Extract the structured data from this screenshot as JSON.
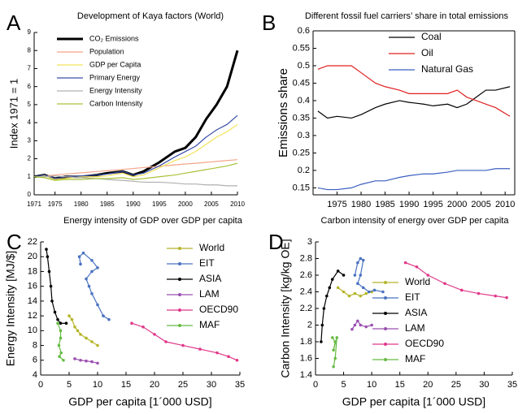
{
  "chart_data": [
    {
      "type": "line",
      "panel": "A",
      "title": "Development of Kaya factors (World)",
      "ylabel": "Index 1971 = 1",
      "x": [
        1971,
        1973,
        1975,
        1977,
        1980,
        1983,
        1985,
        1988,
        1990,
        1992,
        1995,
        1998,
        2000,
        2002,
        2004,
        2006,
        2008,
        2010
      ],
      "xlim": [
        1971,
        2010
      ],
      "xticks": [
        1971,
        1975,
        1980,
        1985,
        1990,
        1995,
        2000,
        2005,
        2010
      ],
      "ylim": [
        0,
        9
      ],
      "yticks": [
        0,
        1,
        2,
        3,
        4,
        5,
        6,
        7,
        8,
        9
      ],
      "legend": "upper left",
      "series": [
        {
          "name": "CO₂ Emissions",
          "color": "#000000",
          "linewidth": 3,
          "values": [
            1,
            1.1,
            0.9,
            1.0,
            1.0,
            1.1,
            1.2,
            1.3,
            1.1,
            1.3,
            1.8,
            2.4,
            2.6,
            3.2,
            4.2,
            5.0,
            6.0,
            8.0
          ]
        },
        {
          "name": "Population",
          "color": "#f4a58a",
          "values": [
            1,
            1.05,
            1.1,
            1.15,
            1.22,
            1.29,
            1.34,
            1.41,
            1.46,
            1.51,
            1.58,
            1.66,
            1.71,
            1.75,
            1.8,
            1.85,
            1.9,
            1.95
          ]
        },
        {
          "name": "GDP per Capita",
          "color": "#f2e25a",
          "values": [
            1,
            1.05,
            0.85,
            0.9,
            1.0,
            1.0,
            1.05,
            1.2,
            1.0,
            1.1,
            1.5,
            1.9,
            2.1,
            2.4,
            2.8,
            3.2,
            3.5,
            3.9
          ]
        },
        {
          "name": "Primary Energy",
          "color": "#3a4fa8",
          "values": [
            1,
            1.1,
            0.9,
            1.0,
            1.05,
            1.1,
            1.15,
            1.3,
            1.1,
            1.2,
            1.6,
            2.1,
            2.4,
            2.7,
            3.2,
            3.6,
            3.9,
            4.4
          ]
        },
        {
          "name": "Energy Intensity",
          "color": "#b0b0b0",
          "values": [
            1,
            1.0,
            1.05,
            1.0,
            0.95,
            0.9,
            0.85,
            0.8,
            0.75,
            0.7,
            0.7,
            0.65,
            0.6,
            0.6,
            0.55,
            0.55,
            0.5,
            0.5
          ]
        },
        {
          "name": "Carbon Intensity",
          "color": "#a8c23a",
          "values": [
            1,
            0.95,
            0.8,
            0.85,
            0.85,
            0.9,
            0.9,
            0.95,
            0.85,
            0.9,
            1.0,
            1.1,
            1.2,
            1.3,
            1.4,
            1.5,
            1.6,
            1.75
          ]
        }
      ]
    },
    {
      "type": "line",
      "panel": "B",
      "title": "Different fossil fuel carriers’ share in total emissions",
      "ylabel": "Emissions share",
      "x": [
        1971,
        1973,
        1975,
        1978,
        1980,
        1983,
        1985,
        1988,
        1990,
        1993,
        1995,
        1998,
        2000,
        2002,
        2004,
        2006,
        2008,
        2011
      ],
      "xlim": [
        1970,
        2012
      ],
      "xticks": [
        1975,
        1980,
        1985,
        1990,
        1995,
        2000,
        2005,
        2010
      ],
      "ylim": [
        0.13,
        0.6
      ],
      "yticks": [
        0.15,
        0.2,
        0.25,
        0.3,
        0.35,
        0.4,
        0.45,
        0.5,
        0.55,
        0.6
      ],
      "legend": "upper right",
      "series": [
        {
          "name": "Coal",
          "color": "#000000",
          "values": [
            0.37,
            0.35,
            0.355,
            0.35,
            0.36,
            0.38,
            0.39,
            0.4,
            0.395,
            0.39,
            0.385,
            0.39,
            0.38,
            0.39,
            0.41,
            0.43,
            0.43,
            0.44
          ]
        },
        {
          "name": "Oil",
          "color": "#e02020",
          "values": [
            0.49,
            0.5,
            0.5,
            0.5,
            0.48,
            0.45,
            0.44,
            0.43,
            0.42,
            0.42,
            0.42,
            0.42,
            0.43,
            0.41,
            0.4,
            0.39,
            0.38,
            0.355
          ]
        },
        {
          "name": "Natural Gas",
          "color": "#3a5fc0",
          "values": [
            0.15,
            0.145,
            0.145,
            0.15,
            0.16,
            0.17,
            0.17,
            0.18,
            0.185,
            0.19,
            0.19,
            0.195,
            0.2,
            0.2,
            0.2,
            0.2,
            0.205,
            0.205
          ]
        }
      ]
    },
    {
      "type": "scatter",
      "panel": "C",
      "title": "Energy intensity of GDP over GDP per capita",
      "ylabel": "Energy Intensity [MJ/$]",
      "xlabel": "GDP per capita [1´000 USD]",
      "xlim": [
        0,
        35
      ],
      "xticks": [
        0,
        5,
        10,
        15,
        20,
        25,
        30,
        35
      ],
      "ylim": [
        4,
        22
      ],
      "yticks": [
        4,
        6,
        8,
        10,
        12,
        14,
        16,
        18,
        20,
        22
      ],
      "legend": "upper right",
      "markers": true,
      "series": [
        {
          "name": "World",
          "color": "#b5b52a",
          "x": [
            5,
            5.5,
            6,
            6.5,
            7,
            8,
            9,
            10
          ],
          "values": [
            12,
            11.5,
            10.5,
            10,
            9.5,
            9,
            8.5,
            8
          ]
        },
        {
          "name": "EIT",
          "color": "#4a72c0",
          "x": [
            7,
            6.8,
            7.5,
            9,
            10,
            9,
            8,
            8.5,
            9,
            10,
            11,
            12
          ],
          "values": [
            19,
            20,
            20.5,
            19.5,
            18.5,
            18,
            17,
            16,
            15,
            13.5,
            12,
            11.5
          ]
        },
        {
          "name": "ASIA",
          "color": "#000000",
          "x": [
            1,
            1.2,
            1.5,
            1.8,
            2,
            2.5,
            3,
            3.5,
            4.5
          ],
          "values": [
            21,
            20,
            18,
            16,
            14,
            12.5,
            11.5,
            11,
            11
          ]
        },
        {
          "name": "LAM",
          "color": "#9a4fb0",
          "x": [
            6,
            7,
            8,
            9,
            10
          ],
          "values": [
            6.2,
            6,
            5.9,
            5.8,
            5.6
          ]
        },
        {
          "name": "OECD90",
          "color": "#e0388a",
          "x": [
            16,
            18,
            20,
            22,
            25,
            28,
            31,
            33,
            34.5
          ],
          "values": [
            11,
            10.5,
            9.5,
            8.5,
            8,
            7.5,
            7,
            6.5,
            6
          ]
        },
        {
          "name": "MAF",
          "color": "#66bb44",
          "x": [
            3,
            3.5,
            3.5,
            3.2,
            3.6,
            3.3,
            4
          ],
          "values": [
            11,
            10,
            9,
            8,
            7,
            6.5,
            6
          ]
        }
      ]
    },
    {
      "type": "scatter",
      "panel": "D",
      "title": "Carbon intensity of energy over GDP per capita",
      "ylabel": "Carbon Intensity [kg/kg OE]",
      "xlabel": "GDP per capita [1´000 USD]",
      "xlim": [
        0,
        35
      ],
      "xticks": [
        0,
        5,
        10,
        15,
        20,
        25,
        30,
        35
      ],
      "ylim": [
        1.4,
        3
      ],
      "yticks": [
        1.4,
        1.6,
        1.8,
        2,
        2.2,
        2.4,
        2.6,
        2.8,
        3
      ],
      "legend": "lower right",
      "markers": true,
      "series": [
        {
          "name": "World",
          "color": "#b5b52a",
          "x": [
            4,
            5,
            6,
            7,
            8,
            9,
            10
          ],
          "values": [
            2.45,
            2.4,
            2.35,
            2.38,
            2.35,
            2.38,
            2.4
          ]
        },
        {
          "name": "EIT",
          "color": "#4a72c0",
          "x": [
            7,
            7.5,
            8,
            8.5,
            8,
            7.5,
            8.5,
            9.5,
            10.5,
            12
          ],
          "values": [
            2.6,
            2.75,
            2.8,
            2.78,
            2.6,
            2.5,
            2.45,
            2.4,
            2.42,
            2.4
          ]
        },
        {
          "name": "ASIA",
          "color": "#000000",
          "x": [
            1,
            1.2,
            1.5,
            2,
            2.5,
            3,
            4,
            5
          ],
          "values": [
            1.8,
            2,
            2.2,
            2.35,
            2.45,
            2.55,
            2.65,
            2.6
          ]
        },
        {
          "name": "LAM",
          "color": "#9a4fb0",
          "x": [
            6.5,
            7,
            7.5,
            8,
            9,
            10
          ],
          "values": [
            1.95,
            2.0,
            2.05,
            2.0,
            1.98,
            2.0
          ]
        },
        {
          "name": "OECD90",
          "color": "#e0388a",
          "x": [
            16,
            18,
            20,
            23,
            26,
            29,
            32,
            34
          ],
          "values": [
            2.75,
            2.7,
            2.6,
            2.5,
            2.42,
            2.38,
            2.35,
            2.33
          ]
        },
        {
          "name": "MAF",
          "color": "#66bb44",
          "x": [
            3,
            3.5,
            3.2,
            3.8,
            3.5,
            3.2
          ],
          "values": [
            1.85,
            1.8,
            1.7,
            1.85,
            1.6,
            1.5
          ]
        }
      ]
    }
  ]
}
